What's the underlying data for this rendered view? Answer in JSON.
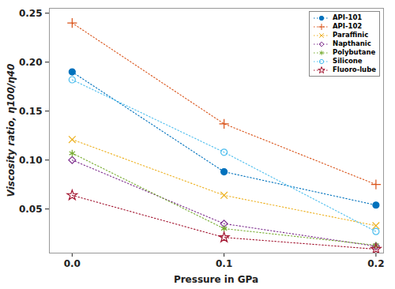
{
  "chart_data": {
    "type": "line",
    "x_label": "Pressure in GPa",
    "y_label": "Viscosity ratio, η100/η40",
    "x": [
      0,
      0.1,
      0.2
    ],
    "xlim": [
      -0.015,
      0.205
    ],
    "xticks": [
      {
        "value": 0,
        "label": "0.0"
      },
      0.1,
      0.2
    ],
    "ylim": [
      0.005,
      0.255
    ],
    "yticks": [
      0.05,
      {
        "value": 0.1,
        "label": "0.10"
      },
      0.15,
      {
        "value": 0.2,
        "label": "0.20"
      },
      0.25
    ],
    "grid": false,
    "legend": "upper right",
    "line_style": "dotted",
    "series": [
      {
        "name": "API-101",
        "color": "#0072BD",
        "marker": "dot",
        "values": [
          0.19,
          0.088,
          0.054
        ]
      },
      {
        "name": "API-102",
        "color": "#D95319",
        "marker": "plus",
        "values": [
          0.24,
          0.137,
          0.075
        ]
      },
      {
        "name": "Paraffinic",
        "color": "#EDB120",
        "marker": "x",
        "values": [
          0.121,
          0.064,
          0.033
        ]
      },
      {
        "name": "Napthanic",
        "color": "#7E2F8E",
        "marker": "diamond",
        "values": [
          0.1,
          0.035,
          0.012
        ]
      },
      {
        "name": "Polybutane",
        "color": "#77AC30",
        "marker": "asterisk",
        "values": [
          0.107,
          0.03,
          0.013
        ]
      },
      {
        "name": "Silicone",
        "color": "#4DBEEE",
        "marker": "circle",
        "values": [
          0.182,
          0.108,
          0.027
        ]
      },
      {
        "name": "Fluoro-lube",
        "color": "#A2142F",
        "marker": "star",
        "values": [
          0.064,
          0.021,
          0.009
        ]
      }
    ]
  }
}
